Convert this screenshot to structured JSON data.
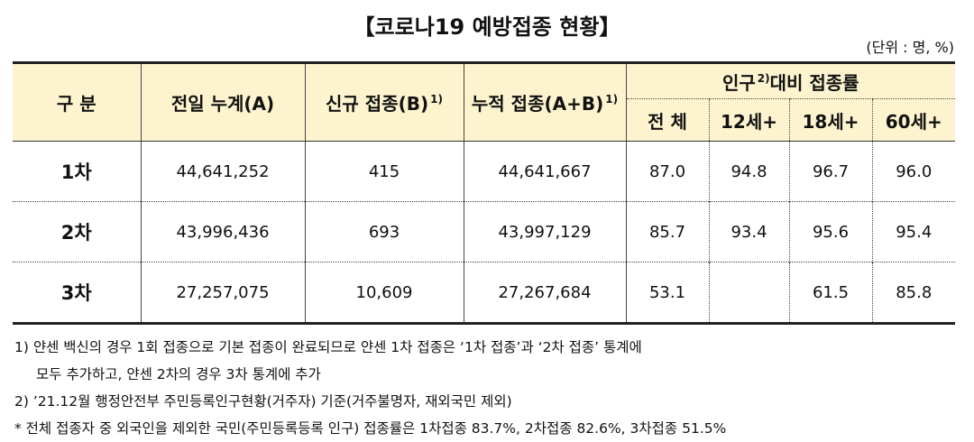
{
  "title": "【코로나19 예방접종 현황】",
  "unit": "(단위 : 명, %)",
  "headers": {
    "category": "구 분",
    "prev_cumulative": "전일 누계(A)",
    "new_vacc": "신규 접종(B)",
    "new_vacc_sup": "1)",
    "cumulative": "누적 접종(A+B)",
    "cumulative_sup": "1)",
    "rate_group": "인구",
    "rate_group_sup": "2)",
    "rate_group_rest": "대비 접종률",
    "rate_total": "전 체",
    "rate_12": "12세+",
    "rate_18": "18세+",
    "rate_60": "60세+"
  },
  "rows": [
    {
      "label": "1차",
      "prev": "44,641,252",
      "new": "415",
      "cum": "44,641,667",
      "total": "87.0",
      "r12": "94.8",
      "r18": "96.7",
      "r60": "96.0"
    },
    {
      "label": "2차",
      "prev": "43,996,436",
      "new": "693",
      "cum": "43,997,129",
      "total": "85.7",
      "r12": "93.4",
      "r18": "95.6",
      "r60": "95.4"
    },
    {
      "label": "3차",
      "prev": "27,257,075",
      "new": "10,609",
      "cum": "27,267,684",
      "total": "53.1",
      "r12": "",
      "r18": "61.5",
      "r60": "85.8"
    }
  ],
  "notes": {
    "n1_line1": "1) 얀센 백신의 경우 1회 접종으로 기본 접종이 완료되므로 얀센 1차 접종은 ‘1차 접종’과 ‘2차 접종’ 통계에",
    "n1_line2": "모두 추가하고, 얀센 2차의 경우 3차 통계에 추가",
    "n2": "2) ’21.12월 행정안전부 주민등록인구현황(거주자) 기준(거주불명자, 재외국민 제외)",
    "n3": " * 전체 접종자 중 외국인을 제외한 국민(주민등록등록 인구) 접종률은 1차접종 83.7%, 2차접종 82.6%, 3차접종 51.5%"
  }
}
